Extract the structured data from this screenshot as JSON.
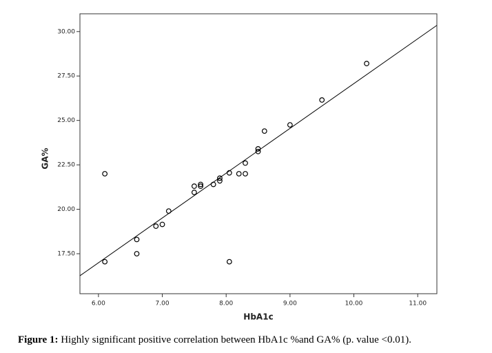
{
  "chart_data": {
    "type": "scatter",
    "x_label": "HbA1c",
    "y_label": "GA%",
    "caption_label": "Figure 1:",
    "caption": "Highly significant positive correlation between HbA1c %and GA% (p. value <0.01).",
    "x": [
      6.1,
      6.1,
      6.6,
      6.6,
      6.9,
      7.0,
      7.1,
      7.5,
      7.5,
      7.6,
      7.6,
      7.8,
      7.9,
      7.9,
      8.05,
      8.05,
      8.2,
      8.3,
      8.3,
      8.5,
      8.5,
      8.6,
      9.0,
      9.5,
      10.2
    ],
    "values": [
      22.0,
      17.05,
      18.3,
      17.5,
      19.05,
      19.15,
      19.9,
      21.3,
      20.95,
      21.4,
      21.3,
      21.4,
      21.75,
      21.6,
      22.05,
      17.05,
      22.0,
      22.0,
      22.6,
      23.4,
      23.25,
      24.4,
      24.75,
      26.15,
      28.2
    ],
    "color": "#000000",
    "fit_line": {
      "x": [
        5.71,
        11.3
      ],
      "y": [
        16.26,
        30.35
      ]
    },
    "xlim": [
      5.71,
      11.3
    ],
    "ylim": [
      15.25,
      31.0
    ],
    "xticks": [
      {
        "value": 6,
        "label": "6.00"
      },
      {
        "value": 7,
        "label": "7.00"
      },
      {
        "value": 8,
        "label": "8.00"
      },
      {
        "value": 9,
        "label": "9.00"
      },
      {
        "value": 10,
        "label": "10.00"
      },
      {
        "value": 11,
        "label": "11.00"
      }
    ],
    "yticks": [
      {
        "value": 17.5,
        "label": "17.50"
      },
      {
        "value": 20,
        "label": "20.00"
      },
      {
        "value": 22.5,
        "label": "22.50"
      },
      {
        "value": 25,
        "label": "25.00"
      },
      {
        "value": 27.5,
        "label": "27.50"
      },
      {
        "value": 30,
        "label": "30.00"
      }
    ]
  }
}
